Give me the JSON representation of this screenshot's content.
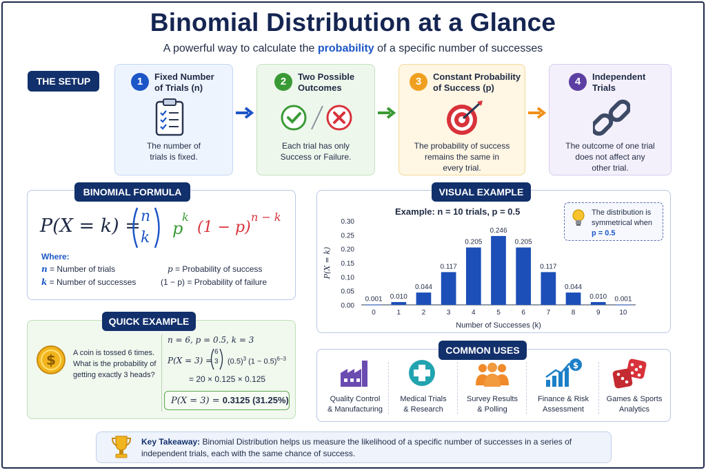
{
  "header": {
    "title": "Binomial Distribution at a Glance",
    "subtitle_pre": "A powerful way to calculate the ",
    "subtitle_highlight": "probability",
    "subtitle_post": " of a specific number of successes"
  },
  "setup": {
    "label": "THE SETUP",
    "steps": [
      {
        "num": "1",
        "title1": "Fixed Number",
        "title2": "of Trials (n)",
        "desc1": "The number of",
        "desc2": "trials is fixed.",
        "desc3": "",
        "icon": "clipboard-checklist-icon",
        "color": "#1c56c7"
      },
      {
        "num": "2",
        "title1": "Two Possible",
        "title2": "Outcomes",
        "desc1": "Each trial has only",
        "desc2": "Success or Failure.",
        "desc3": "",
        "icon": "check-and-cross-icon",
        "color": "#3a9a35"
      },
      {
        "num": "3",
        "title1": "Constant Probability",
        "title2": "of Success (p)",
        "desc1": "The probability of success",
        "desc2": "remains the same in",
        "desc3": "every trial.",
        "icon": "target-dart-icon",
        "color": "#f0a020"
      },
      {
        "num": "4",
        "title1": "Independent",
        "title2": "Trials",
        "desc1": "The outcome of one trial",
        "desc2": "does not affect any",
        "desc3": "other trial.",
        "icon": "chain-link-icon",
        "color": "#5b3fa3"
      }
    ]
  },
  "formula": {
    "label": "BINOMIAL FORMULA",
    "lhs": "P(X = k) = ",
    "binom_top": "n",
    "binom_bottom": "k",
    "p_term": "p",
    "p_exp": "k",
    "q_term": "(1 − p)",
    "q_exp": "n − k",
    "where": "Where:",
    "defs": [
      {
        "sym": "n",
        "text": " = Number of trials"
      },
      {
        "sym": "p",
        "text": " = Probability of success"
      },
      {
        "sym": "k",
        "text": " = Number of successes"
      },
      {
        "sym": "(1 − p)",
        "text": " = Probability of failure"
      }
    ]
  },
  "quick": {
    "label": "QUICK EXAMPLE",
    "question1": "A coin is tossed 6 times.",
    "question2": "What is the probability of",
    "question3": "getting exactly 3 heads?",
    "params": "n = 6,    p = 0.5,    k = 3",
    "line1_lhs": "P(X = 3) = ",
    "line1_top": "6",
    "line1_bottom": "3",
    "line1_rest": "(0.5)",
    "line1_exp1": "3",
    "line1_rest2": "(1 − 0.5)",
    "line1_exp2": "6−3",
    "line2": "= 20 × 0.125 × 0.125",
    "result_lhs": "P(X = 3) = ",
    "result_val": "0.3125 (31.25%)"
  },
  "visual": {
    "label": "VISUAL EXAMPLE",
    "example_pre": "Example: ",
    "example_body": "n = 10 trials,  p = 0.5",
    "note1": "The distribution is",
    "note2": "symmetrical when",
    "note3": "p = 0.5"
  },
  "chart_data": {
    "type": "bar",
    "categories": [
      "0",
      "1",
      "2",
      "3",
      "4",
      "5",
      "6",
      "7",
      "8",
      "9",
      "10"
    ],
    "values": [
      0.001,
      0.01,
      0.044,
      0.117,
      0.205,
      0.246,
      0.205,
      0.117,
      0.044,
      0.01,
      0.001
    ],
    "labels": [
      "0.001",
      "0.010",
      "0.044",
      "0.117",
      "0.205",
      "0.246",
      "0.205",
      "0.117",
      "0.044",
      "0.010",
      "0.001"
    ],
    "yticks": [
      "0.00",
      "0.05",
      "0.10",
      "0.15",
      "0.20",
      "0.25",
      "0.30"
    ],
    "ylim": [
      0,
      0.3
    ],
    "xlabel": "Number of Successes (k)",
    "ylabel": "P(X = k)",
    "bar_color": "#1c4fb8",
    "grid": false
  },
  "uses": {
    "label": "COMMON USES",
    "items": [
      {
        "l1": "Quality Control",
        "l2": "& Manufacturing",
        "icon": "factory-icon"
      },
      {
        "l1": "Medical Trials",
        "l2": "& Research",
        "icon": "medical-cross-icon"
      },
      {
        "l1": "Survey Results",
        "l2": "& Polling",
        "icon": "people-group-icon"
      },
      {
        "l1": "Finance & Risk",
        "l2": "Assessment",
        "icon": "finance-growth-icon"
      },
      {
        "l1": "Games & Sports",
        "l2": "Analytics",
        "icon": "dice-icon"
      }
    ]
  },
  "takeaway": {
    "label": "Key Takeaway:",
    "text1": " Binomial Distribution helps us measure the likelihood of a specific number of successes in a series of",
    "text2": "independent trials, each with the same chance of success."
  }
}
